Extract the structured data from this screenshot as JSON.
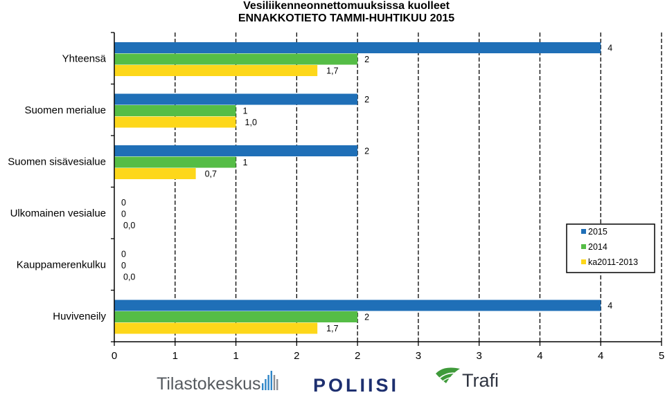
{
  "chart_data": {
    "type": "bar",
    "orientation": "horizontal",
    "title": [
      "Vesiliikenneonnettomuuksissa kuolleet",
      "ENNAKKOTIETO TAMMI-HUHTIKUU 2015"
    ],
    "categories": [
      "Yhteensä",
      "Suomen merialue",
      "Suomen sisävesialue",
      "Ulkomainen vesialue",
      "Kauppamerenkulku",
      "Huviveneily"
    ],
    "series": [
      {
        "name": "2015",
        "color": "#1f6fb7",
        "values": [
          4,
          2,
          2,
          0,
          0,
          4
        ],
        "labels": [
          "4",
          "2",
          "2",
          "0",
          "0",
          "4"
        ]
      },
      {
        "name": "2014",
        "color": "#55bd46",
        "values": [
          2,
          1,
          1,
          0,
          0,
          2
        ],
        "labels": [
          "2",
          "1",
          "1",
          "0",
          "0",
          "2"
        ]
      },
      {
        "name": "ka2011-2013",
        "color": "#fdd71a",
        "values": [
          1.67,
          1.0,
          0.67,
          0.0,
          0.0,
          1.67
        ],
        "labels": [
          "1,7",
          "1,0",
          "0,7",
          "0,0",
          "0,0",
          "1,7"
        ]
      }
    ],
    "x_ticks": [
      "0",
      "1",
      "1",
      "2",
      "2",
      "3",
      "3",
      "4",
      "4",
      "5"
    ],
    "xlim": [
      0,
      4.5
    ],
    "grid": "vertical dashed",
    "legend_position": "right"
  },
  "logos": {
    "tilastokeskus": "Tilastokeskus",
    "poliisi": "POLIISI",
    "trafi": "Trafi"
  }
}
